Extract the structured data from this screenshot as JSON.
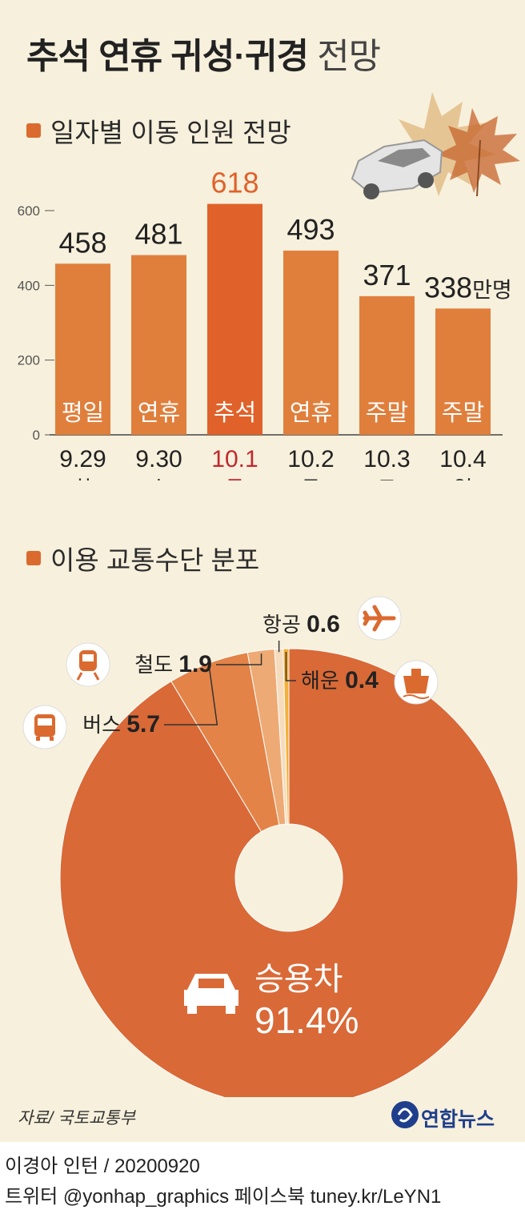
{
  "title": {
    "bold": "추석 연휴 귀성·귀경",
    "light": "전망"
  },
  "colors": {
    "background": "#f7f0dc",
    "bar": "#e07f3c",
    "bar_highlight": "#e0622a",
    "highlight_text": "#e0622a",
    "date_highlight": "#c0282d"
  },
  "chart_data": [
    {
      "type": "bar",
      "title": "일자별 이동 인원 전망",
      "categories": [
        "9.29",
        "9.30",
        "10.1",
        "10.2",
        "10.3",
        "10.4"
      ],
      "weekdays": [
        "(화)",
        "(수)",
        "(목)",
        "(금)",
        "(토)",
        "(일)"
      ],
      "day_types": [
        "평일",
        "연휴",
        "추석",
        "연휴",
        "주말",
        "주말"
      ],
      "values": [
        458,
        481,
        618,
        493,
        371,
        338
      ],
      "value_labels": [
        "458",
        "481",
        "618",
        "493",
        "371",
        "338"
      ],
      "unit": "만명",
      "highlight_index": 2,
      "ylim": [
        0,
        600
      ],
      "yticks": [
        0,
        200,
        400,
        600
      ],
      "ytick_labels": [
        "0",
        "200",
        "400",
        "600"
      ]
    },
    {
      "type": "pie",
      "title": "이용 교통수단 분포",
      "donut": true,
      "slices": [
        {
          "label": "승용차",
          "value": 91.4,
          "value_label": "91.4%",
          "color": "#d96937",
          "icon": "car-icon"
        },
        {
          "label": "버스",
          "value": 5.7,
          "value_label": "5.7",
          "color": "#e38347",
          "icon": "bus-icon"
        },
        {
          "label": "철도",
          "value": 1.9,
          "value_label": "1.9",
          "color": "#eeaa74",
          "icon": "train-icon"
        },
        {
          "label": "항공",
          "value": 0.6,
          "value_label": "0.6",
          "color": "#f6dcbd",
          "icon": "airplane-icon"
        },
        {
          "label": "해운",
          "value": 0.4,
          "value_label": "0.4",
          "color": "#f3b03a",
          "icon": "ship-icon"
        }
      ]
    }
  ],
  "source": "자료/ 국토교통부",
  "logo": "연합뉴스",
  "footer": {
    "credit": "이경아 인턴 / 20200920",
    "social": "트위터 @yonhap_graphics  페이스북 tuney.kr/LeYN1"
  }
}
